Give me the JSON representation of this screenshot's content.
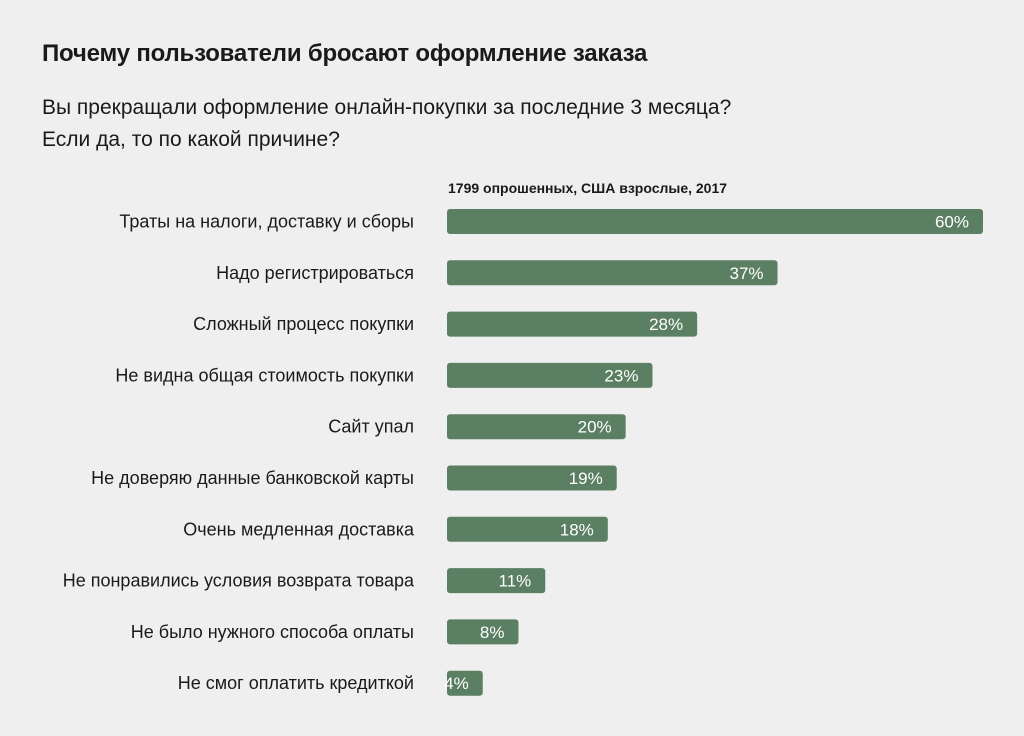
{
  "header": {
    "title": "Почему пользователи бросают оформление заказа",
    "subtitle_line1": "Вы прекращали оформление онлайн-покупки за последние 3 месяца?",
    "subtitle_line2": "Если да, то по какой причине?",
    "note": "1799 опрошенных, США взрослые, 2017"
  },
  "colors": {
    "bar": "#5b7f62",
    "background": "#efefef"
  },
  "chart_data": {
    "type": "bar",
    "orientation": "horizontal",
    "categories": [
      "Траты на налоги, доставку и сборы",
      "Надо регистрироваться",
      "Сложный процесс покупки",
      "Не видна общая стоимость покупки",
      "Сайт упал",
      "Не доверяю данные банковской карты",
      "Очень медленная доставка",
      "Не понравились условия возврата товара",
      "Не было нужного способа оплаты",
      "Не смог оплатить кредиткой"
    ],
    "values": [
      60,
      37,
      28,
      23,
      20,
      19,
      18,
      11,
      8,
      4
    ],
    "value_labels": [
      "60%",
      "37%",
      "28%",
      "23%",
      "20%",
      "19%",
      "18%",
      "11%",
      "8%",
      "4%"
    ],
    "xlim": [
      0,
      60
    ],
    "grid": false
  }
}
